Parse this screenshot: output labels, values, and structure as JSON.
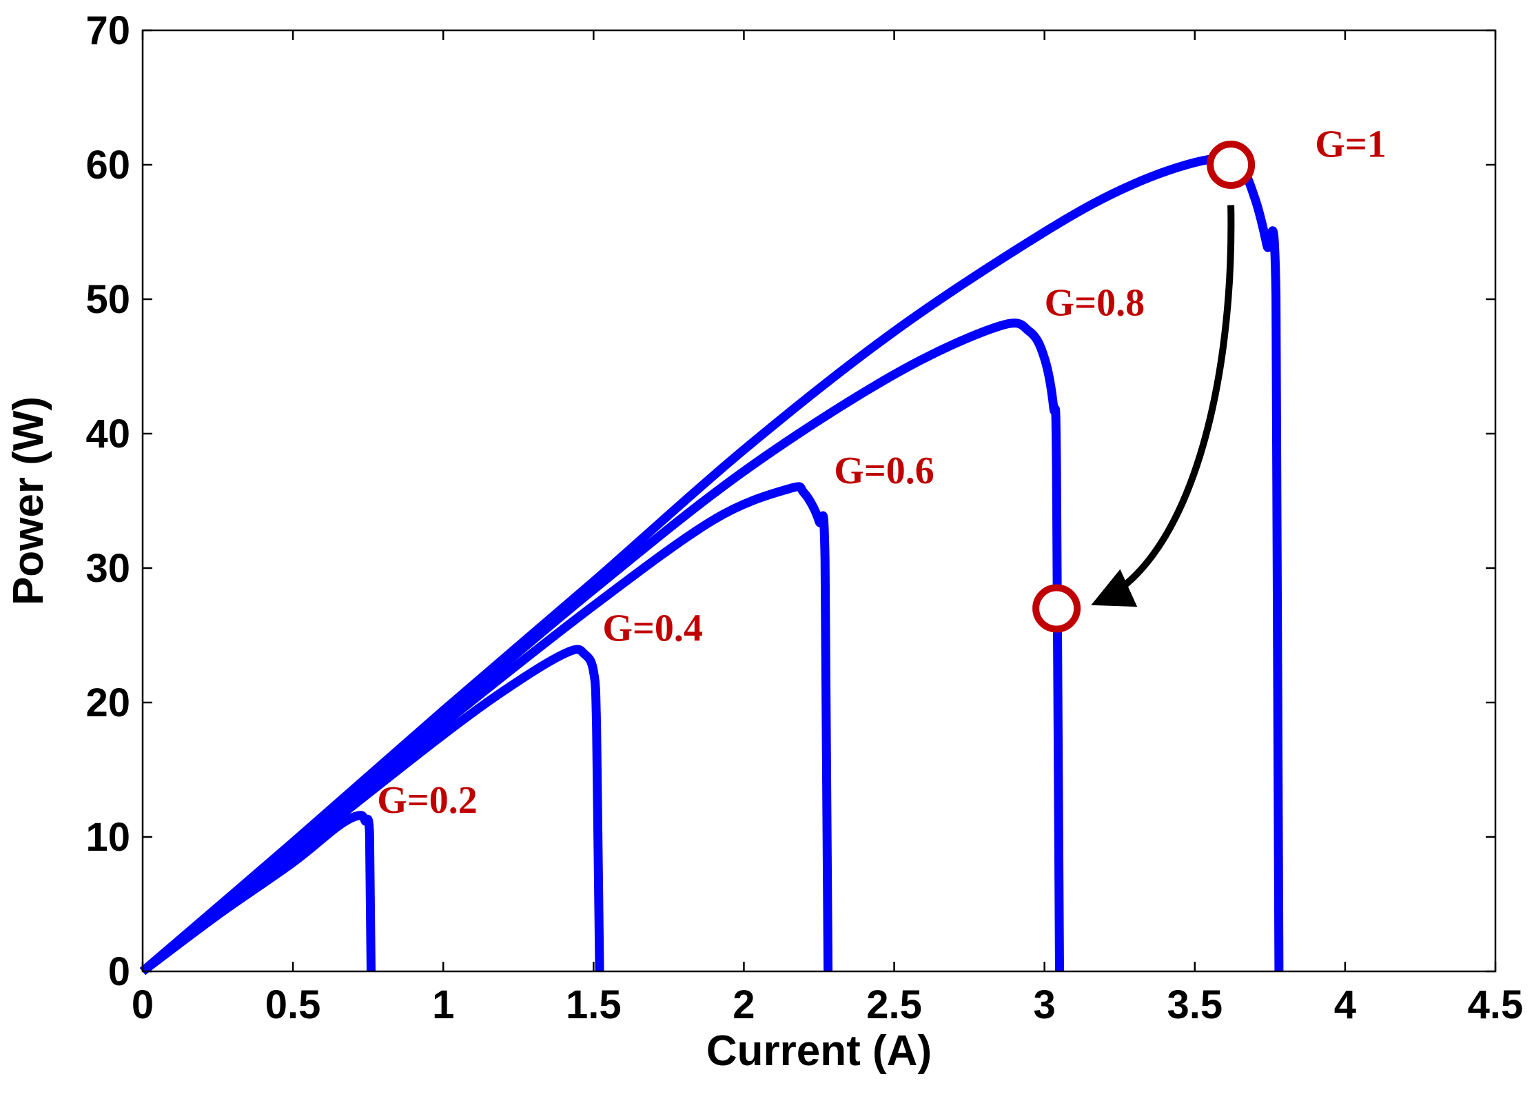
{
  "chart_data": {
    "type": "line",
    "title": "",
    "xlabel": "Current (A)",
    "ylabel": "Power (W)",
    "xlim": [
      0,
      4.5
    ],
    "ylim": [
      0,
      70
    ],
    "xticks": [
      0,
      0.5,
      1,
      1.5,
      2,
      2.5,
      3,
      3.5,
      4,
      4.5
    ],
    "yticks": [
      0,
      10,
      20,
      30,
      40,
      50,
      60,
      70
    ],
    "grid": false,
    "line_color": "#0000ff",
    "annotation_color": "#c00000",
    "series": [
      {
        "label": "G=0.2",
        "points": [
          [
            0,
            0
          ],
          [
            0.25,
            4.2
          ],
          [
            0.5,
            8.1
          ],
          [
            0.65,
            10.8
          ],
          [
            0.72,
            11.6
          ],
          [
            0.74,
            11.2
          ],
          [
            0.755,
            10.2
          ],
          [
            0.76,
            0
          ]
        ],
        "label_at": [
          0.78,
          11.8
        ]
      },
      {
        "label": "G=0.4",
        "points": [
          [
            0,
            0
          ],
          [
            0.5,
            8.8
          ],
          [
            1.0,
            17.6
          ],
          [
            1.25,
            21.6
          ],
          [
            1.42,
            23.8
          ],
          [
            1.47,
            23.6
          ],
          [
            1.5,
            22.3
          ],
          [
            1.51,
            18.1
          ],
          [
            1.52,
            0
          ]
        ],
        "label_at": [
          1.53,
          24.6
        ]
      },
      {
        "label": "G=0.6",
        "points": [
          [
            0,
            0
          ],
          [
            0.5,
            9.2
          ],
          [
            1.0,
            18.4
          ],
          [
            1.5,
            27.2
          ],
          [
            1.9,
            33.6
          ],
          [
            2.15,
            35.9
          ],
          [
            2.2,
            35.6
          ],
          [
            2.25,
            33.5
          ],
          [
            2.27,
            30.7
          ],
          [
            2.28,
            0
          ]
        ],
        "label_at": [
          2.3,
          36.3
        ]
      },
      {
        "label": "G=0.8",
        "points": [
          [
            0,
            0
          ],
          [
            0.5,
            9.5
          ],
          [
            1.0,
            19.0
          ],
          [
            1.5,
            28.4
          ],
          [
            2.0,
            37.2
          ],
          [
            2.5,
            44.4
          ],
          [
            2.85,
            48.0
          ],
          [
            2.95,
            47.6
          ],
          [
            3.0,
            45.6
          ],
          [
            3.03,
            42.0
          ],
          [
            3.04,
            37.4
          ],
          [
            3.05,
            0
          ]
        ],
        "label_at": [
          3.0,
          48.8
        ]
      },
      {
        "label": "G=1",
        "points": [
          [
            0,
            0
          ],
          [
            0.5,
            9.6
          ],
          [
            1.0,
            19.4
          ],
          [
            1.5,
            29.0
          ],
          [
            2.0,
            38.8
          ],
          [
            2.5,
            47.6
          ],
          [
            3.0,
            55.0
          ],
          [
            3.3,
            58.6
          ],
          [
            3.55,
            60.4
          ],
          [
            3.65,
            59.8
          ],
          [
            3.7,
            57.5
          ],
          [
            3.74,
            54.0
          ],
          [
            3.77,
            50.2
          ],
          [
            3.78,
            0
          ]
        ],
        "label_at": [
          3.9,
          60.6
        ]
      }
    ],
    "markers": [
      {
        "shape": "circle",
        "x": 3.62,
        "y": 60.0
      },
      {
        "shape": "circle",
        "x": 3.04,
        "y": 27.0
      }
    ],
    "arrow": {
      "from": [
        3.62,
        57.0
      ],
      "to": [
        3.18,
        27.5
      ]
    }
  }
}
